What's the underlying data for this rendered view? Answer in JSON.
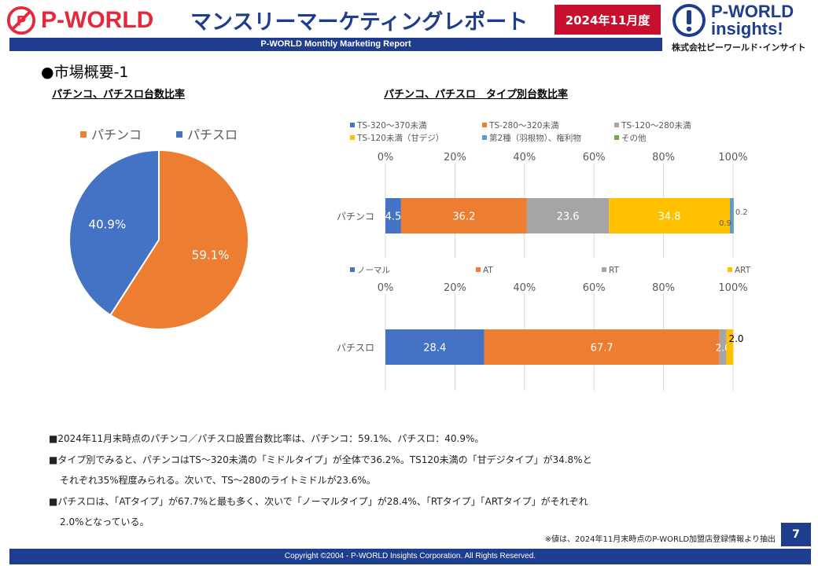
{
  "header": {
    "logo_text": "P-WORLD",
    "title": "マンスリーマーケティングレポート",
    "date_badge": "2024年11月度",
    "subtitle": "P-WORLD Monthly Marketing Report",
    "insights_line1": "P-WORLD",
    "insights_line2": "insights!",
    "company": "株式会社ピーワールド･インサイト"
  },
  "section_title": "●市場概要-1",
  "pie_title": "パチンコ、パチスロ台数比率",
  "bar_title": "パチンコ、パチスロ　タイプ別台数比率",
  "colors": {
    "blue": "#4472c4",
    "orange": "#ed7d31",
    "gray": "#a5a5a5",
    "yellow": "#ffc000",
    "lightblue": "#5b9bd5",
    "green": "#70ad47",
    "brand_blue": "#1f3d8f",
    "brand_red": "#c8102e"
  },
  "chart_data": [
    {
      "type": "pie",
      "categories": [
        "パチンコ",
        "パチスロ"
      ],
      "values": [
        59.1,
        40.9
      ],
      "labels": [
        "59.1%",
        "40.9%"
      ],
      "legend": "top"
    },
    {
      "type": "bar",
      "orientation": "horizontal-stacked-100",
      "categories": [
        "パチンコ"
      ],
      "axis_ticks": [
        "0%",
        "20%",
        "40%",
        "60%",
        "80%",
        "100%"
      ],
      "series": [
        {
          "name": "TS-320～370未満",
          "values": [
            4.5
          ]
        },
        {
          "name": "TS-280～320未満",
          "values": [
            36.2
          ]
        },
        {
          "name": "TS-120～280未満",
          "values": [
            23.6
          ]
        },
        {
          "name": "TS-120未満（甘デジ）",
          "values": [
            34.8
          ]
        },
        {
          "name": "第2種（羽根物）、権利物",
          "values": [
            0.9
          ]
        },
        {
          "name": "その他",
          "values": [
            0.2
          ]
        }
      ],
      "legend": "top"
    },
    {
      "type": "bar",
      "orientation": "horizontal-stacked-100",
      "categories": [
        "パチスロ"
      ],
      "axis_ticks": [
        "0%",
        "20%",
        "40%",
        "60%",
        "80%",
        "100%"
      ],
      "series": [
        {
          "name": "ノーマル",
          "values": [
            28.4
          ]
        },
        {
          "name": "AT",
          "values": [
            67.7
          ]
        },
        {
          "name": "RT",
          "values": [
            2.0
          ]
        },
        {
          "name": "ART",
          "values": [
            2.0
          ]
        }
      ],
      "legend": "top"
    }
  ],
  "notes": [
    "■2024年11月末時点のパチンコ／パチスロ設置台数比率は、パチンコ：59.1%、パチスロ：40.9%。",
    "■タイプ別でみると、パチンコはTS～320未満の「ミドルタイプ」が全体で36.2%。TS120未満の「甘デジタイプ」が34.8%と",
    "それぞれ35%程度みられる。次いで、TS～280のライトミドルが23.6%。",
    "■パチスロは、「ATタイプ」が67.7%と最も多く、次いで「ノーマルタイプ」が28.4%、「RTタイプ」「ARTタイプ」がそれぞれ",
    "2.0%となっている。"
  ],
  "source_note": "※値は、2024年11月末時点のP-WORLD加盟店登録情報より抽出",
  "page_number": "7",
  "footer": "Copyright ©2004 -  P-WORLD Insights Corporation. All Rights Reserved."
}
